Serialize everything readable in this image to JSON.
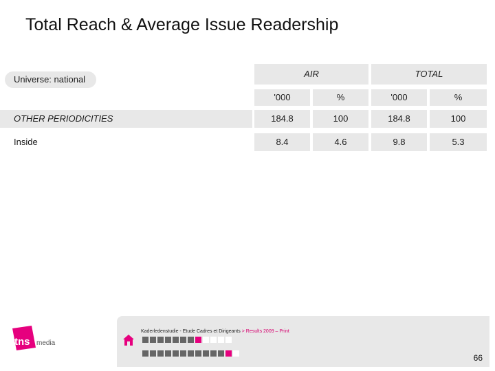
{
  "title": "Total Reach & Average Issue Readership",
  "universe": "Universe: national",
  "columns": {
    "groups": [
      "AIR",
      "TOTAL"
    ],
    "sub": [
      "'000",
      "%",
      "'000",
      "%"
    ]
  },
  "rows": [
    {
      "label": "OTHER PERIODICITIES",
      "values": [
        "184.8",
        "100",
        "184.8",
        "100"
      ]
    },
    {
      "label": "Inside",
      "values": [
        "8.4",
        "4.6",
        "9.8",
        "5.3"
      ]
    }
  ],
  "footer": {
    "breadcrumb_main": "Kaderledenstudie - Etude Cadres et Dirigeants",
    "breadcrumb_sep": " > ",
    "breadcrumb_section": "Results 2009 – Print",
    "page_number": "66"
  },
  "logo": {
    "text": "tns",
    "sub": "media",
    "color": "#e6007e"
  },
  "colors": {
    "accent": "#e6007e",
    "band": "#e8e8e8"
  }
}
